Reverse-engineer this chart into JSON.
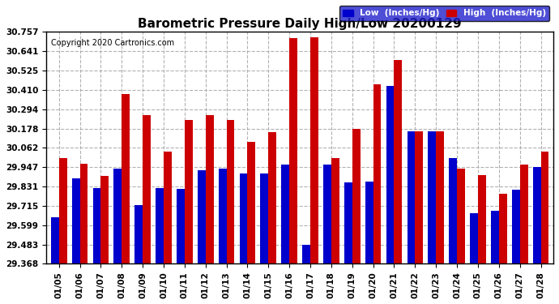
{
  "title": "Barometric Pressure Daily High/Low 20200129",
  "copyright": "Copyright 2020 Cartronics.com",
  "dates": [
    "01/05",
    "01/06",
    "01/07",
    "01/08",
    "01/09",
    "01/10",
    "01/11",
    "01/12",
    "01/13",
    "01/14",
    "01/15",
    "01/16",
    "01/17",
    "01/18",
    "01/19",
    "01/20",
    "01/21",
    "01/22",
    "01/23",
    "01/24",
    "01/25",
    "01/26",
    "01/27",
    "01/28"
  ],
  "low": [
    29.648,
    29.878,
    29.822,
    29.94,
    29.718,
    29.82,
    29.818,
    29.93,
    29.94,
    29.91,
    29.91,
    29.96,
    29.483,
    29.96,
    29.855,
    29.86,
    30.432,
    30.16,
    30.162,
    30.0,
    29.672,
    29.688,
    29.81,
    29.95
  ],
  "high": [
    30.0,
    29.965,
    29.895,
    30.385,
    30.257,
    30.04,
    30.228,
    30.258,
    30.228,
    30.097,
    30.158,
    30.718,
    30.725,
    30.0,
    30.178,
    30.442,
    30.59,
    30.16,
    30.16,
    29.94,
    29.897,
    29.79,
    29.96,
    30.042
  ],
  "ylim_min": 29.368,
  "ylim_max": 30.757,
  "yticks": [
    29.368,
    29.483,
    29.599,
    29.715,
    29.831,
    29.947,
    30.062,
    30.178,
    30.294,
    30.41,
    30.525,
    30.641,
    30.757
  ],
  "low_color": "#0000cc",
  "high_color": "#cc0000",
  "grid_color": "#aaaaaa",
  "bar_width": 0.38
}
